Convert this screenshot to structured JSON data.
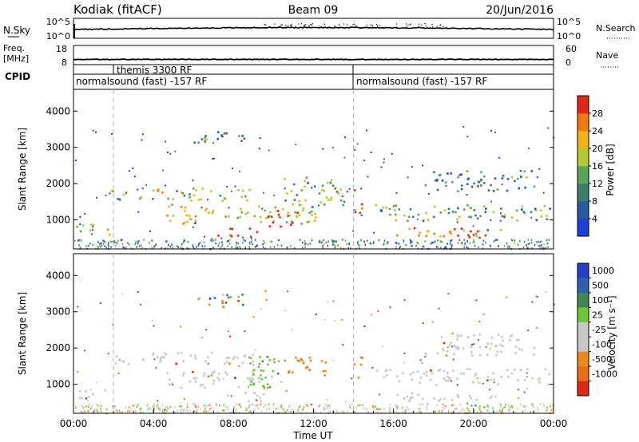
{
  "header": {
    "station": "Kodiak (fitACF)",
    "beam": "Beam 09",
    "date": "20/Jun/2016"
  },
  "small_panels": {
    "nsky_label": "N.Sky",
    "nsky_ticks": [
      "10^5",
      "10^0"
    ],
    "nsearch_label": "N.Search",
    "nsearch_ticks": [
      "10^5",
      "10^0"
    ],
    "freq_label_1": "Freq.",
    "freq_label_2": "[MHz]",
    "freq_ticks": [
      "18",
      "8"
    ],
    "nave_label": "Nave",
    "nave_ticks": [
      "60",
      "0"
    ],
    "cpid_label": "CPID"
  },
  "cpid_segments": [
    {
      "label": "normalsound (fast) -157 RF",
      "start_hour": 0
    },
    {
      "label": "themis 3300 RF",
      "start_hour": 2
    },
    {
      "label": "normalsound (fast) -157 RF",
      "start_hour": 14
    }
  ],
  "colors": {
    "power_scale": [
      "#1f3fdb",
      "#2a5aa0",
      "#3d7d6a",
      "#5aa55a",
      "#b4c832",
      "#f0b416",
      "#f07a10",
      "#e02818"
    ],
    "velocity_scale": [
      "#2340c8",
      "#2a62b0",
      "#3d8a55",
      "#6cc832",
      "#c8c8c8",
      "#c8c8c8",
      "#ee8a1c",
      "#ec6d14",
      "#e02818"
    ],
    "ground": "#a0a0a0",
    "dashed_line": "#b4b4b4"
  },
  "chart_data": [
    {
      "type": "heatmap",
      "panel": "power",
      "ylabel": "Slant Range [km]",
      "yticks": [
        "1000",
        "2000",
        "3000",
        "4000"
      ],
      "ylim": [
        200,
        4600
      ],
      "xlim_hours": [
        0,
        24
      ],
      "colorbar_label": "Power [dB]",
      "colorbar_ticks": [
        "28",
        "24",
        "20",
        "16",
        "12",
        "8",
        "4"
      ],
      "colorbar_range": [
        0,
        32
      ],
      "echo_regions": [
        {
          "t0": 0.0,
          "t1": 1.8,
          "r0": 600,
          "r1": 900,
          "level": 0.6
        },
        {
          "t0": 1.8,
          "t1": 9.0,
          "r0": 1550,
          "r1": 1900,
          "level": 0.55
        },
        {
          "t0": 4.6,
          "t1": 12.2,
          "r0": 900,
          "r1": 1400,
          "level": 0.6
        },
        {
          "t0": 7.0,
          "t1": 9.5,
          "r0": 550,
          "r1": 800,
          "level": 0.95
        },
        {
          "t0": 9.6,
          "t1": 11.2,
          "r0": 800,
          "r1": 1300,
          "level": 0.9
        },
        {
          "t0": 10.5,
          "t1": 13.5,
          "r0": 1400,
          "r1": 2200,
          "level": 0.45
        },
        {
          "t0": 6.0,
          "t1": 8.5,
          "r0": 3100,
          "r1": 3500,
          "level": 0.35
        },
        {
          "t0": 14.0,
          "t1": 14.5,
          "r0": 1200,
          "r1": 1850,
          "level": 0.9
        },
        {
          "t0": 15.0,
          "t1": 23.8,
          "r0": 1000,
          "r1": 1450,
          "level": 0.4
        },
        {
          "t0": 16.0,
          "t1": 21.5,
          "r0": 550,
          "r1": 800,
          "level": 0.75
        },
        {
          "t0": 18.5,
          "t1": 20.5,
          "r0": 500,
          "r1": 700,
          "level": 0.95
        },
        {
          "t0": 17.5,
          "t1": 23.0,
          "r0": 1800,
          "r1": 2400,
          "level": 0.3
        }
      ]
    },
    {
      "type": "heatmap",
      "panel": "velocity",
      "ylabel": "Slant Range [km]",
      "yticks": [
        "1000",
        "2000",
        "3000",
        "4000"
      ],
      "ylim": [
        200,
        4600
      ],
      "xlim_hours": [
        0,
        24
      ],
      "colorbar_label": "Velocity [m s⁻¹]",
      "colorbar_ticks": [
        "1000",
        "500",
        "100",
        "25",
        "-25",
        "-100",
        "-500",
        "-1000"
      ],
      "echo_regions": [
        {
          "t0": 0.0,
          "t1": 1.8,
          "r0": 600,
          "r1": 900,
          "vclass": "ground"
        },
        {
          "t0": 1.8,
          "t1": 9.0,
          "r0": 1550,
          "r1": 1900,
          "vclass": "ground"
        },
        {
          "t0": 4.6,
          "t1": 9.0,
          "r0": 900,
          "r1": 1400,
          "vclass": "ground"
        },
        {
          "t0": 7.0,
          "t1": 9.5,
          "r0": 550,
          "r1": 800,
          "vclass": "ground"
        },
        {
          "t0": 8.5,
          "t1": 10.5,
          "r0": 900,
          "r1": 1800,
          "vclass": "toward"
        },
        {
          "t0": 10.5,
          "t1": 12.8,
          "r0": 1300,
          "r1": 1800,
          "vclass": "away"
        },
        {
          "t0": 6.0,
          "t1": 8.5,
          "r0": 3100,
          "r1": 3500,
          "vclass": "mixed"
        },
        {
          "t0": 14.0,
          "t1": 14.5,
          "r0": 1200,
          "r1": 1850,
          "vclass": "away"
        },
        {
          "t0": 15.0,
          "t1": 23.8,
          "r0": 1000,
          "r1": 1450,
          "vclass": "ground"
        },
        {
          "t0": 16.0,
          "t1": 21.5,
          "r0": 550,
          "r1": 800,
          "vclass": "ground"
        },
        {
          "t0": 17.5,
          "t1": 23.0,
          "r0": 1800,
          "r1": 2400,
          "vclass": "ground"
        }
      ]
    }
  ],
  "x_axis": {
    "ticks": [
      "00:00",
      "04:00",
      "08:00",
      "12:00",
      "16:00",
      "20:00",
      "00:00"
    ],
    "label": "Time UT"
  }
}
